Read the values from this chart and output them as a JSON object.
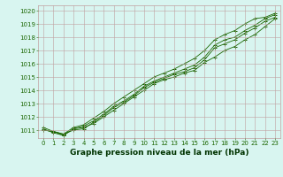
{
  "x": [
    0,
    1,
    2,
    3,
    4,
    5,
    6,
    7,
    8,
    9,
    10,
    11,
    12,
    13,
    14,
    15,
    16,
    17,
    18,
    19,
    20,
    21,
    22,
    23
  ],
  "lines": [
    [
      1011.0,
      1010.9,
      1010.6,
      1011.1,
      1011.2,
      1011.5,
      1012.0,
      1012.5,
      1013.0,
      1013.5,
      1014.0,
      1014.5,
      1014.8,
      1015.0,
      1015.3,
      1015.5,
      1016.1,
      1016.5,
      1017.0,
      1017.3,
      1017.8,
      1018.2,
      1018.8,
      1019.4
    ],
    [
      1011.0,
      1010.9,
      1010.7,
      1011.0,
      1011.1,
      1011.6,
      1012.1,
      1012.7,
      1013.1,
      1013.6,
      1014.2,
      1014.6,
      1014.9,
      1015.2,
      1015.4,
      1015.7,
      1016.3,
      1017.2,
      1017.5,
      1017.8,
      1018.3,
      1018.7,
      1019.2,
      1019.5
    ],
    [
      1011.1,
      1010.8,
      1010.6,
      1011.1,
      1011.3,
      1011.7,
      1012.2,
      1012.8,
      1013.2,
      1013.7,
      1014.3,
      1014.7,
      1015.0,
      1015.3,
      1015.6,
      1015.9,
      1016.5,
      1017.4,
      1017.8,
      1018.0,
      1018.5,
      1018.9,
      1019.4,
      1019.7
    ],
    [
      1011.2,
      1010.9,
      1010.7,
      1011.2,
      1011.4,
      1011.9,
      1012.4,
      1013.0,
      1013.5,
      1014.0,
      1014.5,
      1015.0,
      1015.3,
      1015.6,
      1016.0,
      1016.4,
      1017.0,
      1017.8,
      1018.2,
      1018.5,
      1019.0,
      1019.4,
      1019.5,
      1019.8
    ]
  ],
  "line_color": "#1a6600",
  "marker": "+",
  "marker_size": 3,
  "ylim": [
    1010.4,
    1020.4
  ],
  "yticks": [
    1011,
    1012,
    1013,
    1014,
    1015,
    1016,
    1017,
    1018,
    1019,
    1020
  ],
  "xticks": [
    0,
    1,
    2,
    3,
    4,
    5,
    6,
    7,
    8,
    9,
    10,
    11,
    12,
    13,
    14,
    15,
    16,
    17,
    18,
    19,
    20,
    21,
    22,
    23
  ],
  "xlabel": "Graphe pression niveau de la mer (hPa)",
  "bg_color": "#d8f5f0",
  "grid_color": "#c0a0a0",
  "text_color": "#1a6600",
  "label_color": "#003300",
  "tick_fontsize": 5.0,
  "xlabel_fontsize": 6.5
}
